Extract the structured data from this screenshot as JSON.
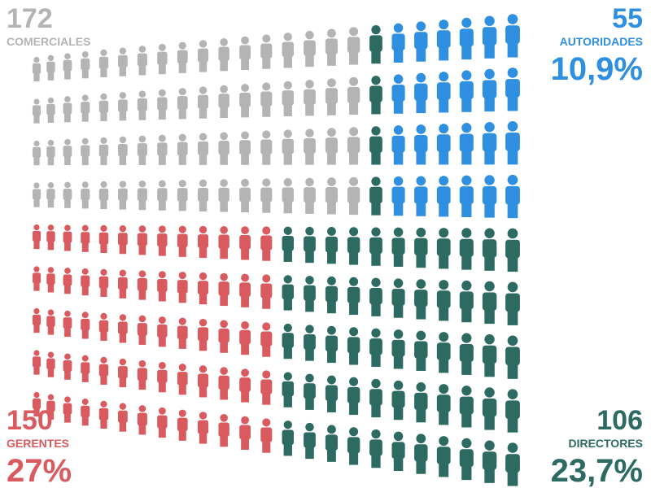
{
  "chart_data": {
    "type": "pictogram",
    "categories": [
      "COMERCIALES",
      "AUTORIDADES",
      "GERENTES",
      "DIRECTORES"
    ],
    "values": [
      172,
      55,
      150,
      106
    ],
    "shares": [
      null,
      10.9,
      27,
      23.7
    ],
    "share_labels": [
      null,
      "10,9%",
      "27%",
      "23,7%"
    ],
    "colors": [
      "#b4b4b4",
      "#2f8fe0",
      "#d95a5f",
      "#2c6a62"
    ]
  }
}
